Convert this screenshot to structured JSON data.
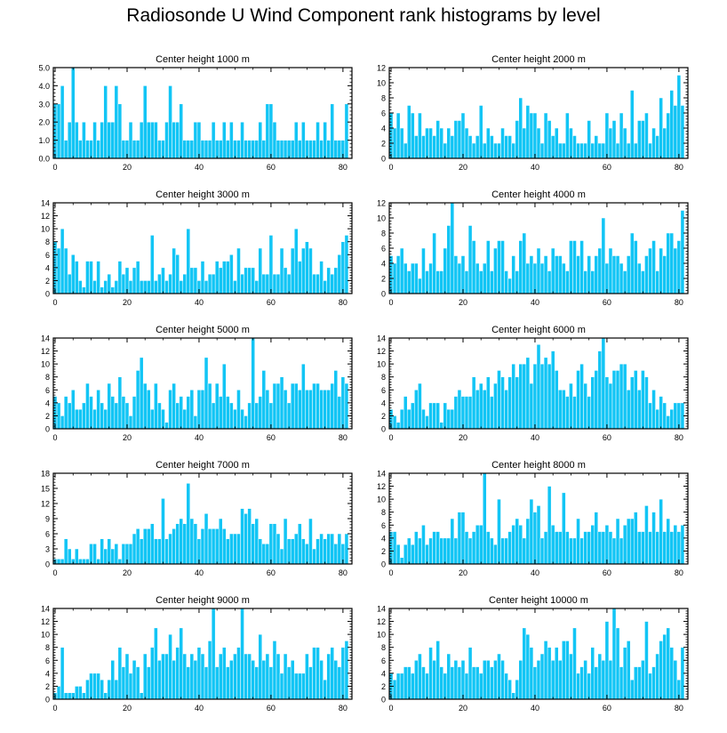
{
  "figure": {
    "title": "Radiosonde U Wind Component rank histograms by level"
  },
  "style": {
    "bar_color": "#12c5f5",
    "bar_edge": "#ffffff",
    "axis_color": "#000000"
  },
  "chart_data": [
    {
      "type": "bar",
      "title": "Center height 1000 m",
      "ylim": [
        0,
        5
      ],
      "yticks": [
        "0.0",
        "1.0",
        "2.0",
        "3.0",
        "4.0",
        "5.0"
      ],
      "xticks": [
        "0",
        "20",
        "40",
        "60",
        "80"
      ],
      "values": [
        3,
        3,
        4,
        1,
        2,
        5,
        2,
        1,
        2,
        1,
        1,
        2,
        1,
        2,
        4,
        2,
        2,
        4,
        3,
        1,
        1,
        2,
        1,
        1,
        2,
        4,
        2,
        2,
        2,
        1,
        1,
        2,
        4,
        2,
        2,
        3,
        1,
        1,
        1,
        2,
        2,
        1,
        1,
        1,
        2,
        1,
        1,
        2,
        1,
        2,
        1,
        1,
        2,
        1,
        1,
        1,
        1,
        2,
        1,
        3,
        3,
        2,
        1,
        1,
        1,
        1,
        1,
        2,
        1,
        2,
        1,
        1,
        1,
        2,
        1,
        2,
        1,
        3,
        1,
        1,
        1,
        3
      ]
    },
    {
      "type": "bar",
      "title": "Center height 2000 m",
      "ylim": [
        0,
        12
      ],
      "yticks": [
        "0",
        "2",
        "4",
        "6",
        "8",
        "10",
        "12"
      ],
      "xticks": [
        "0",
        "20",
        "40",
        "60",
        "80"
      ],
      "values": [
        6,
        4,
        6,
        4,
        2,
        7,
        6,
        3,
        6,
        3,
        4,
        4,
        3,
        5,
        4,
        2,
        4,
        3,
        5,
        5,
        6,
        4,
        3,
        2,
        3,
        7,
        2,
        4,
        3,
        2,
        2,
        4,
        3,
        3,
        2,
        5,
        8,
        4,
        7,
        6,
        6,
        4,
        2,
        6,
        5,
        3,
        4,
        2,
        2,
        6,
        4,
        3,
        2,
        2,
        2,
        5,
        2,
        3,
        2,
        2,
        6,
        4,
        5,
        2,
        6,
        4,
        2,
        9,
        2,
        5,
        5,
        6,
        2,
        4,
        3,
        8,
        4,
        6,
        9,
        7,
        11,
        7
      ]
    },
    {
      "type": "bar",
      "title": "Center height 3000 m",
      "ylim": [
        0,
        14
      ],
      "yticks": [
        "0",
        "2",
        "4",
        "6",
        "8",
        "10",
        "12",
        "14"
      ],
      "xticks": [
        "0",
        "20",
        "40",
        "60",
        "80"
      ],
      "values": [
        8,
        7,
        10,
        7,
        3,
        6,
        5,
        2,
        1,
        5,
        5,
        2,
        5,
        1,
        2,
        3,
        1,
        2,
        5,
        3,
        4,
        2,
        4,
        5,
        2,
        2,
        2,
        9,
        2,
        3,
        4,
        2,
        3,
        7,
        6,
        2,
        3,
        10,
        4,
        4,
        2,
        5,
        2,
        3,
        3,
        5,
        4,
        5,
        5,
        6,
        2,
        7,
        3,
        4,
        4,
        4,
        2,
        7,
        3,
        3,
        9,
        3,
        3,
        7,
        4,
        3,
        7,
        10,
        5,
        7,
        8,
        7,
        3,
        3,
        5,
        2,
        4,
        3,
        4,
        6,
        8,
        9
      ]
    },
    {
      "type": "bar",
      "title": "Center height 4000 m",
      "ylim": [
        0,
        12
      ],
      "yticks": [
        "0",
        "2",
        "4",
        "6",
        "8",
        "10",
        "12"
      ],
      "xticks": [
        "0",
        "20",
        "40",
        "60",
        "80"
      ],
      "values": [
        5,
        4,
        5,
        6,
        4,
        3,
        4,
        4,
        2,
        6,
        3,
        4,
        8,
        3,
        3,
        6,
        9,
        12,
        5,
        4,
        5,
        3,
        9,
        7,
        4,
        3,
        4,
        7,
        3,
        6,
        7,
        7,
        3,
        2,
        5,
        3,
        7,
        8,
        4,
        5,
        4,
        6,
        4,
        5,
        3,
        6,
        5,
        5,
        4,
        3,
        7,
        7,
        5,
        7,
        3,
        5,
        3,
        5,
        6,
        10,
        4,
        6,
        5,
        5,
        4,
        3,
        5,
        8,
        7,
        4,
        3,
        5,
        6,
        7,
        3,
        6,
        5,
        8,
        8,
        6,
        7,
        11
      ]
    },
    {
      "type": "bar",
      "title": "Center height 5000 m",
      "ylim": [
        0,
        14
      ],
      "yticks": [
        "0",
        "2",
        "4",
        "6",
        "8",
        "10",
        "12",
        "14"
      ],
      "xticks": [
        "0",
        "20",
        "40",
        "60",
        "80"
      ],
      "values": [
        5,
        4,
        2,
        5,
        4,
        6,
        3,
        3,
        4,
        7,
        5,
        3,
        6,
        4,
        3,
        7,
        5,
        4,
        8,
        5,
        4,
        2,
        5,
        9,
        11,
        7,
        6,
        3,
        7,
        4,
        3,
        1,
        6,
        7,
        4,
        5,
        3,
        5,
        6,
        2,
        6,
        6,
        11,
        7,
        4,
        7,
        5,
        10,
        5,
        4,
        3,
        6,
        3,
        2,
        4,
        14,
        4,
        5,
        9,
        6,
        4,
        7,
        7,
        8,
        6,
        4,
        7,
        7,
        6,
        10,
        6,
        6,
        7,
        7,
        6,
        6,
        6,
        7,
        9,
        5,
        8,
        7
      ]
    },
    {
      "type": "bar",
      "title": "Center height 6000 m",
      "ylim": [
        0,
        14
      ],
      "yticks": [
        "0",
        "2",
        "4",
        "6",
        "8",
        "10",
        "12",
        "14"
      ],
      "xticks": [
        "0",
        "20",
        "40",
        "60",
        "80"
      ],
      "values": [
        3,
        2,
        1,
        3,
        5,
        3,
        4,
        6,
        7,
        3,
        2,
        4,
        4,
        4,
        1,
        4,
        3,
        3,
        5,
        6,
        5,
        5,
        5,
        8,
        6,
        7,
        6,
        8,
        5,
        7,
        9,
        8,
        6,
        8,
        10,
        8,
        10,
        10,
        11,
        7,
        10,
        13,
        10,
        11,
        10,
        12,
        9,
        6,
        6,
        5,
        7,
        5,
        9,
        10,
        7,
        5,
        8,
        9,
        12,
        14,
        8,
        7,
        9,
        9,
        10,
        10,
        6,
        8,
        9,
        6,
        9,
        8,
        4,
        6,
        3,
        5,
        4,
        2,
        3,
        4,
        4,
        4
      ]
    },
    {
      "type": "bar",
      "title": "Center height 7000 m",
      "ylim": [
        0,
        18
      ],
      "yticks": [
        "0",
        "3",
        "6",
        "9",
        "12",
        "15",
        "18"
      ],
      "xticks": [
        "0",
        "20",
        "40",
        "60",
        "80"
      ],
      "values": [
        1,
        1,
        1,
        5,
        3,
        1,
        3,
        1,
        1,
        1,
        4,
        4,
        1,
        5,
        3,
        5,
        3,
        4,
        1,
        4,
        4,
        4,
        6,
        7,
        5,
        7,
        7,
        8,
        5,
        5,
        13,
        5,
        6,
        7,
        8,
        9,
        8,
        16,
        9,
        8,
        5,
        7,
        10,
        7,
        7,
        7,
        9,
        7,
        5,
        6,
        6,
        6,
        11,
        10,
        11,
        8,
        9,
        5,
        4,
        4,
        8,
        8,
        6,
        3,
        9,
        5,
        5,
        6,
        8,
        5,
        4,
        9,
        3,
        5,
        6,
        5,
        6,
        6,
        4,
        6,
        4,
        6
      ]
    },
    {
      "type": "bar",
      "title": "Center height 8000 m",
      "ylim": [
        0,
        14
      ],
      "yticks": [
        "0",
        "2",
        "4",
        "6",
        "8",
        "10",
        "12",
        "14"
      ],
      "xticks": [
        "0",
        "20",
        "40",
        "60",
        "80"
      ],
      "values": [
        5,
        5,
        3,
        1,
        3,
        4,
        3,
        5,
        4,
        6,
        3,
        4,
        5,
        5,
        4,
        4,
        4,
        7,
        4,
        8,
        8,
        5,
        4,
        5,
        6,
        6,
        14,
        5,
        4,
        3,
        10,
        4,
        4,
        5,
        6,
        7,
        6,
        4,
        7,
        10,
        8,
        9,
        4,
        5,
        12,
        6,
        5,
        5,
        11,
        5,
        4,
        4,
        7,
        4,
        5,
        5,
        6,
        8,
        5,
        5,
        6,
        5,
        4,
        7,
        4,
        6,
        7,
        7,
        8,
        5,
        5,
        9,
        5,
        8,
        5,
        10,
        5,
        7,
        5,
        6,
        5,
        6
      ]
    },
    {
      "type": "bar",
      "title": "Center height 9000 m",
      "ylim": [
        0,
        14
      ],
      "yticks": [
        "0",
        "2",
        "4",
        "6",
        "8",
        "10",
        "12",
        "14"
      ],
      "xticks": [
        "0",
        "20",
        "40",
        "60",
        "80"
      ],
      "values": [
        1,
        2,
        8,
        1,
        1,
        1,
        2,
        2,
        1,
        3,
        4,
        4,
        4,
        3,
        1,
        3,
        6,
        3,
        8,
        5,
        7,
        4,
        6,
        5,
        1,
        7,
        5,
        8,
        11,
        6,
        7,
        7,
        10,
        6,
        8,
        11,
        7,
        5,
        7,
        6,
        8,
        7,
        5,
        9,
        14,
        5,
        7,
        8,
        5,
        6,
        7,
        8,
        14,
        7,
        7,
        6,
        5,
        10,
        6,
        7,
        5,
        9,
        7,
        4,
        7,
        5,
        6,
        4,
        4,
        4,
        7,
        5,
        8,
        8,
        6,
        3,
        7,
        8,
        6,
        5,
        8,
        9
      ]
    },
    {
      "type": "bar",
      "title": "Center height 10000 m",
      "ylim": [
        0,
        14
      ],
      "yticks": [
        "0",
        "2",
        "4",
        "6",
        "8",
        "10",
        "12",
        "14"
      ],
      "xticks": [
        "0",
        "20",
        "40",
        "60",
        "80"
      ],
      "values": [
        4,
        3,
        4,
        4,
        5,
        5,
        4,
        6,
        7,
        5,
        4,
        8,
        6,
        9,
        5,
        4,
        7,
        5,
        6,
        5,
        6,
        4,
        8,
        5,
        5,
        4,
        6,
        6,
        5,
        6,
        7,
        6,
        4,
        3,
        1,
        3,
        6,
        11,
        10,
        8,
        5,
        6,
        7,
        9,
        8,
        6,
        8,
        6,
        9,
        9,
        7,
        11,
        4,
        5,
        6,
        4,
        8,
        5,
        7,
        6,
        12,
        6,
        14,
        11,
        5,
        8,
        9,
        3,
        5,
        5,
        6,
        12,
        4,
        5,
        7,
        9,
        10,
        11,
        8,
        6,
        3,
        8
      ]
    }
  ]
}
